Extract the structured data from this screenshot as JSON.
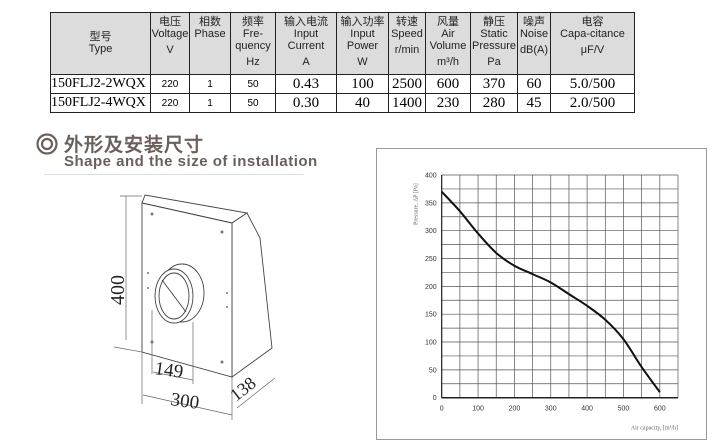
{
  "table": {
    "headers": [
      {
        "cn": "型号",
        "en": "Type",
        "unit": ""
      },
      {
        "cn": "电压",
        "en": "Voltage",
        "unit": "V"
      },
      {
        "cn": "相数",
        "en": "Phase",
        "unit": ""
      },
      {
        "cn": "频率",
        "en": "Fre-quency",
        "unit": "Hz"
      },
      {
        "cn": "输入电流",
        "en": "Input Current",
        "unit": "A"
      },
      {
        "cn": "输入功率",
        "en": "Input Power",
        "unit": "W"
      },
      {
        "cn": "转速",
        "en": "Speed",
        "unit": "r/min"
      },
      {
        "cn": "风量",
        "en": "Air Volume",
        "unit": "m³/h"
      },
      {
        "cn": "静压",
        "en": "Static Pressure",
        "unit": "Pa"
      },
      {
        "cn": "噪声",
        "en": "Noise",
        "unit": "dB(A)"
      },
      {
        "cn": "电容",
        "en": "Capa-citance",
        "unit": "μF/V"
      }
    ],
    "rows": [
      [
        "150FLJ2-2WQX",
        "220",
        "1",
        "50",
        "0.43",
        "100",
        "2500",
        "600",
        "370",
        "60",
        "5.0/500"
      ],
      [
        "150FLJ2-4WQX",
        "220",
        "1",
        "50",
        "0.30",
        "40",
        "1400",
        "230",
        "280",
        "45",
        "2.0/500"
      ]
    ]
  },
  "section": {
    "title_cn": "外形及安装尺寸",
    "title_en": "Shape and the size of installation",
    "icon": "double-circle-icon",
    "color": "#6b5f5a"
  },
  "dimensions": {
    "height": "400",
    "width": "300",
    "depth": "138",
    "duct": "149"
  },
  "chart_data": {
    "type": "line",
    "xlabel": "Air capacity, [m³/h]",
    "ylabel": "Pressure, ΔP [Pa]",
    "xlim": [
      0,
      650
    ],
    "ylim": [
      0,
      400
    ],
    "xticks": [
      0,
      100,
      200,
      300,
      400,
      500,
      600
    ],
    "yticks": [
      0,
      50,
      100,
      150,
      200,
      250,
      300,
      350,
      400
    ],
    "grid": true,
    "x": [
      0,
      50,
      100,
      150,
      200,
      250,
      300,
      350,
      400,
      450,
      500,
      550,
      600
    ],
    "y": [
      370,
      335,
      295,
      260,
      237,
      222,
      207,
      186,
      165,
      140,
      105,
      55,
      10
    ]
  }
}
